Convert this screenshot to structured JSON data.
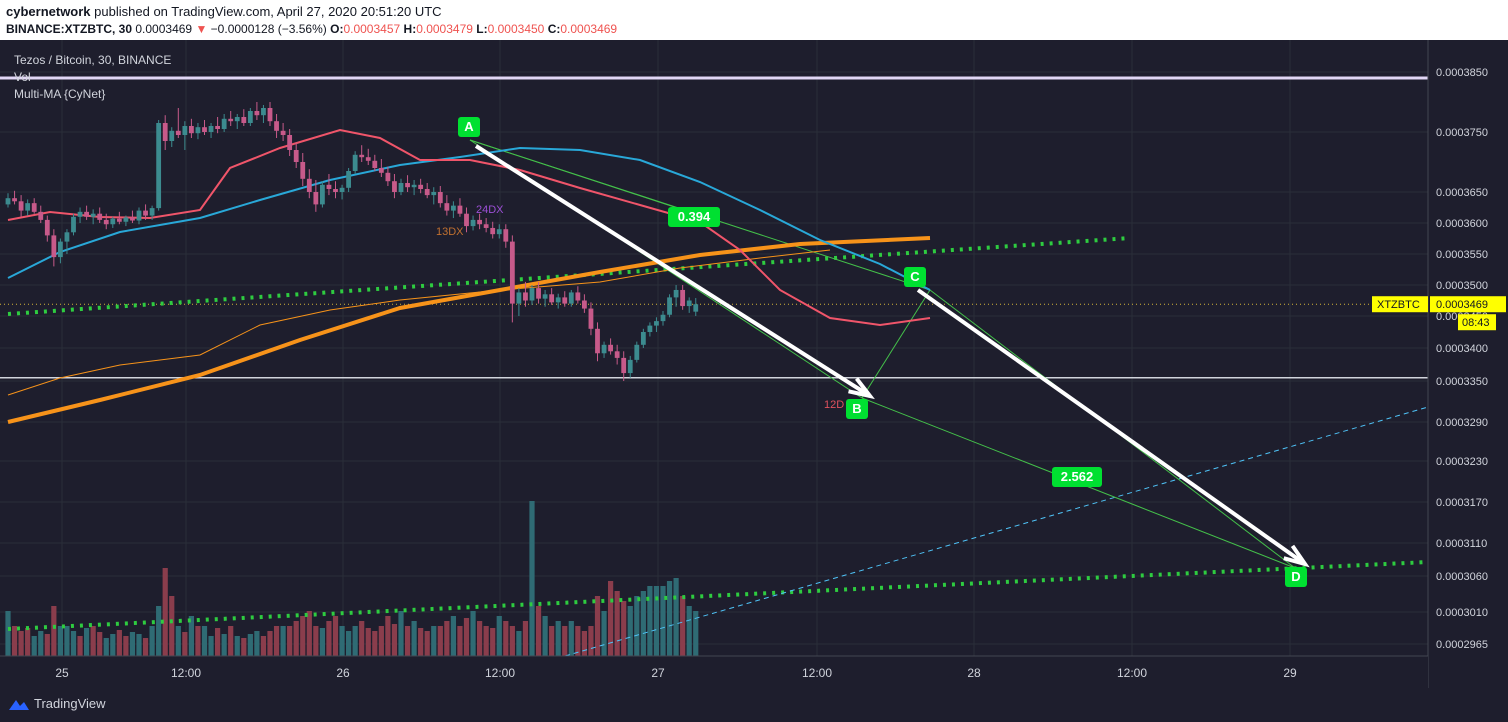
{
  "header": {
    "publisher": "cybernetwork",
    "published_text": "published on TradingView.com, April 27, 2020 20:51:20 UTC",
    "symbol": "BINANCE:XTZBTC, 30",
    "last": "0.0003469",
    "change_arrow": "▼",
    "change": "−0.0000128 (−3.56%)",
    "o_label": "O:",
    "o": "0.0003457",
    "h_label": "H:",
    "h": "0.0003479",
    "l_label": "L:",
    "l": "0.0003450",
    "c_label": "C:",
    "c": "0.0003469"
  },
  "legend": {
    "title": "Tezos / Bitcoin, 30, BINANCE",
    "vol": "Vol",
    "ma": "Multi-MA {CyNet}"
  },
  "footer": {
    "brand": "TradingView",
    "logo_icon": "tradingview-logo-icon"
  },
  "colors": {
    "background": "#1e1e2d",
    "up": "#26a69a",
    "down": "#ef5350",
    "ma_fast": "#f0556a",
    "ma_mid": "#29a8d8",
    "ma_slow": "#f7931a",
    "support": "#2ecc40",
    "annotation": "#00e031",
    "price_tag": "#ffff00"
  },
  "chart_data": {
    "type": "candlestick",
    "title": "Tezos / Bitcoin, 30, BINANCE",
    "y_ticks": [
      "0.0003850",
      "0.0003750",
      "0.0003650",
      "0.0003600",
      "0.0003550",
      "0.0003500",
      "0.0003450",
      "0.0003400",
      "0.0003350",
      "0.0003290",
      "0.0003230",
      "0.0003170",
      "0.0003110",
      "0.0003060",
      "0.0003010",
      "0.0002965"
    ],
    "x_ticks": [
      "25",
      "12:00",
      "26",
      "12:00",
      "27",
      "12:00",
      "28",
      "12:00",
      "29"
    ],
    "price_tag": {
      "symbol": "XTZBTC",
      "value": "0.0003469",
      "countdown": "08:43"
    },
    "annotations": [
      {
        "text": "A",
        "kind": "point"
      },
      {
        "text": "B",
        "kind": "point"
      },
      {
        "text": "C",
        "kind": "point"
      },
      {
        "text": "D",
        "kind": "point"
      },
      {
        "text": "0.394",
        "kind": "ratio"
      },
      {
        "text": "2.562",
        "kind": "ratio"
      },
      {
        "text": "24DX",
        "kind": "ma-label",
        "color": "#9c4fd6"
      },
      {
        "text": "13DX",
        "kind": "ma-label",
        "color": "#c07030"
      },
      {
        "text": "12D",
        "kind": "ma-label",
        "color": "#e0525e"
      }
    ],
    "resistance_level": 0.000384,
    "horizontal_level": 0.0003355,
    "current_price": 0.0003469,
    "candles": [
      [
        0.000363,
        0.0003648,
        0.0003625,
        0.000364
      ],
      [
        0.000364,
        0.0003652,
        0.000363,
        0.0003635
      ],
      [
        0.0003635,
        0.0003645,
        0.000361,
        0.000362
      ],
      [
        0.000362,
        0.0003638,
        0.0003612,
        0.0003632
      ],
      [
        0.0003632,
        0.000364,
        0.0003615,
        0.0003618
      ],
      [
        0.0003618,
        0.0003628,
        0.00036,
        0.0003605
      ],
      [
        0.0003605,
        0.0003612,
        0.000357,
        0.000358
      ],
      [
        0.000358,
        0.000359,
        0.000353,
        0.0003545
      ],
      [
        0.0003545,
        0.0003575,
        0.0003535,
        0.000357
      ],
      [
        0.000357,
        0.000359,
        0.000355,
        0.0003585
      ],
      [
        0.0003585,
        0.0003615,
        0.000358,
        0.000361
      ],
      [
        0.000361,
        0.0003625,
        0.00036,
        0.0003618
      ],
      [
        0.0003618,
        0.0003628,
        0.0003605,
        0.000361
      ],
      [
        0.000361,
        0.0003622,
        0.0003598,
        0.0003615
      ],
      [
        0.0003615,
        0.0003625,
        0.00036,
        0.0003605
      ],
      [
        0.0003605,
        0.0003615,
        0.000359,
        0.0003598
      ],
      [
        0.0003598,
        0.000361,
        0.0003592,
        0.0003607
      ],
      [
        0.0003607,
        0.0003618,
        0.0003598,
        0.0003602
      ],
      [
        0.0003602,
        0.0003612,
        0.0003595,
        0.0003609
      ],
      [
        0.0003609,
        0.000362,
        0.00036,
        0.0003604
      ],
      [
        0.0003604,
        0.0003625,
        0.0003598,
        0.000362
      ],
      [
        0.000362,
        0.000363,
        0.0003605,
        0.0003612
      ],
      [
        0.0003612,
        0.0003628,
        0.0003605,
        0.0003624
      ],
      [
        0.0003624,
        0.000377,
        0.000362,
        0.0003765
      ],
      [
        0.0003765,
        0.0003778,
        0.000372,
        0.0003735
      ],
      [
        0.0003735,
        0.0003758,
        0.0003725,
        0.0003752
      ],
      [
        0.0003752,
        0.000379,
        0.000374,
        0.0003745
      ],
      [
        0.0003745,
        0.0003768,
        0.000372,
        0.000376
      ],
      [
        0.000376,
        0.0003772,
        0.000374,
        0.0003748
      ],
      [
        0.0003748,
        0.0003765,
        0.0003738,
        0.0003758
      ],
      [
        0.0003758,
        0.000377,
        0.0003745,
        0.000375
      ],
      [
        0.000375,
        0.0003765,
        0.000374,
        0.000376
      ],
      [
        0.000376,
        0.0003775,
        0.0003748,
        0.0003755
      ],
      [
        0.0003755,
        0.000378,
        0.000375,
        0.0003772
      ],
      [
        0.0003772,
        0.0003785,
        0.000376,
        0.0003768
      ],
      [
        0.0003768,
        0.000378,
        0.0003755,
        0.0003775
      ],
      [
        0.0003775,
        0.0003788,
        0.000376,
        0.0003765
      ],
      [
        0.0003765,
        0.000379,
        0.000376,
        0.0003785
      ],
      [
        0.0003785,
        0.00038,
        0.000377,
        0.0003778
      ],
      [
        0.0003778,
        0.0003795,
        0.0003765,
        0.000379
      ],
      [
        0.000379,
        0.00038,
        0.000376,
        0.0003768
      ],
      [
        0.0003768,
        0.000378,
        0.000374,
        0.0003752
      ],
      [
        0.0003752,
        0.0003765,
        0.0003735,
        0.0003745
      ],
      [
        0.0003745,
        0.0003755,
        0.000371,
        0.000372
      ],
      [
        0.000372,
        0.0003732,
        0.000369,
        0.00037
      ],
      [
        0.00037,
        0.0003715,
        0.000366,
        0.0003672
      ],
      [
        0.0003672,
        0.0003688,
        0.000364,
        0.000365
      ],
      [
        0.000365,
        0.000367,
        0.0003618,
        0.000363
      ],
      [
        0.000363,
        0.0003668,
        0.0003625,
        0.0003662
      ],
      [
        0.0003662,
        0.000368,
        0.0003645,
        0.0003655
      ],
      [
        0.0003655,
        0.0003668,
        0.000364,
        0.000365
      ],
      [
        0.000365,
        0.0003662,
        0.0003638,
        0.0003657
      ],
      [
        0.0003657,
        0.000369,
        0.000365,
        0.0003685
      ],
      [
        0.0003685,
        0.0003718,
        0.000368,
        0.0003712
      ],
      [
        0.0003712,
        0.0003728,
        0.00037,
        0.0003708
      ],
      [
        0.0003708,
        0.0003722,
        0.0003695,
        0.0003702
      ],
      [
        0.0003702,
        0.0003712,
        0.0003685,
        0.000369
      ],
      [
        0.000369,
        0.0003705,
        0.0003675,
        0.0003682
      ],
      [
        0.0003682,
        0.0003692,
        0.000366,
        0.0003668
      ],
      [
        0.0003668,
        0.000368,
        0.000364,
        0.000365
      ],
      [
        0.000365,
        0.0003672,
        0.0003645,
        0.0003665
      ],
      [
        0.0003665,
        0.0003678,
        0.000365,
        0.0003658
      ],
      [
        0.0003658,
        0.000367,
        0.0003645,
        0.0003662
      ],
      [
        0.0003662,
        0.0003672,
        0.0003648,
        0.0003655
      ],
      [
        0.0003655,
        0.0003665,
        0.000364,
        0.0003645
      ],
      [
        0.0003645,
        0.0003658,
        0.000363,
        0.000365
      ],
      [
        0.000365,
        0.000366,
        0.0003625,
        0.0003632
      ],
      [
        0.0003632,
        0.0003645,
        0.0003612,
        0.000362
      ],
      [
        0.000362,
        0.0003635,
        0.0003608,
        0.0003628
      ],
      [
        0.0003628,
        0.000364,
        0.000361,
        0.0003615
      ],
      [
        0.0003615,
        0.0003625,
        0.0003585,
        0.0003595
      ],
      [
        0.0003595,
        0.0003612,
        0.0003588,
        0.0003605
      ],
      [
        0.0003605,
        0.0003615,
        0.000359,
        0.0003598
      ],
      [
        0.0003598,
        0.0003608,
        0.0003585,
        0.0003592
      ],
      [
        0.0003592,
        0.0003602,
        0.0003575,
        0.0003582
      ],
      [
        0.0003582,
        0.0003598,
        0.0003575,
        0.000359
      ],
      [
        0.000359,
        0.0003598,
        0.000356,
        0.000357
      ],
      [
        0.000357,
        0.000358,
        0.000344,
        0.000347
      ],
      [
        0.000347,
        0.0003495,
        0.000345,
        0.0003488
      ],
      [
        0.0003488,
        0.0003505,
        0.0003465,
        0.0003475
      ],
      [
        0.0003475,
        0.00035,
        0.0003468,
        0.0003495
      ],
      [
        0.0003495,
        0.0003505,
        0.000347,
        0.0003478
      ],
      [
        0.0003478,
        0.0003492,
        0.0003465,
        0.0003485
      ],
      [
        0.0003485,
        0.0003495,
        0.0003468,
        0.0003472
      ],
      [
        0.0003472,
        0.0003486,
        0.0003462,
        0.000348
      ],
      [
        0.000348,
        0.000349,
        0.0003465,
        0.000347
      ],
      [
        0.000347,
        0.0003492,
        0.0003465,
        0.0003488
      ],
      [
        0.0003488,
        0.0003498,
        0.000347,
        0.0003475
      ],
      [
        0.0003475,
        0.0003485,
        0.0003455,
        0.0003462
      ],
      [
        0.0003462,
        0.0003472,
        0.000342,
        0.000343
      ],
      [
        0.000343,
        0.000344,
        0.000338,
        0.0003392
      ],
      [
        0.0003392,
        0.000341,
        0.0003385,
        0.0003405
      ],
      [
        0.0003405,
        0.0003415,
        0.000339,
        0.0003395
      ],
      [
        0.0003395,
        0.0003405,
        0.0003375,
        0.0003385
      ],
      [
        0.0003385,
        0.0003395,
        0.000335,
        0.0003362
      ],
      [
        0.0003362,
        0.0003388,
        0.0003355,
        0.0003382
      ],
      [
        0.0003382,
        0.000341,
        0.0003378,
        0.0003405
      ],
      [
        0.0003405,
        0.000343,
        0.00034,
        0.0003425
      ],
      [
        0.0003425,
        0.000344,
        0.0003418,
        0.0003435
      ],
      [
        0.0003435,
        0.0003448,
        0.0003425,
        0.0003442
      ],
      [
        0.0003442,
        0.0003458,
        0.0003435,
        0.0003452
      ],
      [
        0.0003452,
        0.0003485,
        0.0003448,
        0.000348
      ],
      [
        0.000348,
        0.00035,
        0.0003465,
        0.0003492
      ],
      [
        0.0003492,
        0.00035,
        0.000346,
        0.0003466
      ],
      [
        0.0003466,
        0.000348,
        0.0003455,
        0.0003475
      ],
      [
        0.0003457,
        0.0003479,
        0.000345,
        0.0003469
      ]
    ],
    "volumes": [
      [
        0.0299,
        "up"
      ],
      [
        0.0299,
        "down"
      ],
      [
        0.0299,
        "down"
      ],
      [
        0.0299,
        "down"
      ],
      [
        0.0299,
        "up"
      ],
      [
        0.0299,
        "up"
      ],
      [
        0.0299,
        "down"
      ],
      [
        0.0299,
        "down"
      ],
      [
        0.0299,
        "up"
      ],
      [
        0.0299,
        "up"
      ],
      [
        0.0299,
        "up"
      ],
      [
        0.0299,
        "down"
      ],
      [
        0.0299,
        "up"
      ],
      [
        0.0299,
        "down"
      ],
      [
        0.0299,
        "down"
      ],
      [
        0.0299,
        "up"
      ],
      [
        0.0299,
        "up"
      ],
      [
        0.0299,
        "down"
      ],
      [
        0.0299,
        "down"
      ],
      [
        0.0299,
        "up"
      ],
      [
        0.0299,
        "up"
      ],
      [
        0.0299,
        "down"
      ],
      [
        0.0299,
        "up"
      ],
      [
        0.0299,
        "up"
      ],
      [
        0.0299,
        "down"
      ],
      [
        0.0299,
        "down"
      ],
      [
        0.0299,
        "up"
      ],
      [
        0.0299,
        "down"
      ],
      [
        0.0299,
        "up"
      ],
      [
        0.0299,
        "down"
      ],
      [
        0.0299,
        "up"
      ],
      [
        0.0299,
        "up"
      ],
      [
        0.0299,
        "down"
      ],
      [
        0.0299,
        "up"
      ],
      [
        0.0299,
        "down"
      ],
      [
        0.0299,
        "up"
      ],
      [
        0.0299,
        "down"
      ],
      [
        0.0299,
        "up"
      ],
      [
        0.0299,
        "up"
      ],
      [
        0.0299,
        "down"
      ],
      [
        0.0299,
        "down"
      ],
      [
        0.0299,
        "down"
      ],
      [
        0.0299,
        "up"
      ],
      [
        0.0299,
        "down"
      ],
      [
        0.0299,
        "down"
      ],
      [
        0.0299,
        "down"
      ],
      [
        0.0299,
        "down"
      ],
      [
        0.0299,
        "down"
      ],
      [
        0.0299,
        "up"
      ],
      [
        0.0299,
        "down"
      ],
      [
        0.0299,
        "down"
      ],
      [
        0.0299,
        "up"
      ],
      [
        0.0299,
        "up"
      ],
      [
        0.0299,
        "up"
      ],
      [
        0.0299,
        "down"
      ],
      [
        0.0299,
        "down"
      ],
      [
        0.0299,
        "down"
      ],
      [
        0.0299,
        "down"
      ],
      [
        0.0299,
        "down"
      ],
      [
        0.0299,
        "down"
      ],
      [
        0.0299,
        "up"
      ],
      [
        0.0299,
        "down"
      ],
      [
        0.0299,
        "up"
      ],
      [
        0.0299,
        "down"
      ],
      [
        0.0299,
        "down"
      ],
      [
        0.0299,
        "up"
      ],
      [
        0.0299,
        "down"
      ],
      [
        0.0299,
        "down"
      ],
      [
        0.0299,
        "up"
      ],
      [
        0.0299,
        "down"
      ],
      [
        0.0299,
        "down"
      ],
      [
        0.0299,
        "up"
      ],
      [
        0.0299,
        "down"
      ],
      [
        0.0299,
        "down"
      ],
      [
        0.0299,
        "down"
      ],
      [
        0.0299,
        "up"
      ],
      [
        0.0299,
        "down"
      ],
      [
        0.0299,
        "down"
      ],
      [
        0.0299,
        "up"
      ],
      [
        0.0299,
        "down"
      ],
      [
        0.0299,
        "up"
      ],
      [
        0.0299,
        "down"
      ],
      [
        0.0299,
        "up"
      ],
      [
        0.0299,
        "down"
      ],
      [
        0.0299,
        "up"
      ],
      [
        0.0299,
        "down"
      ],
      [
        0.0299,
        "up"
      ],
      [
        0.0299,
        "down"
      ],
      [
        0.0299,
        "down"
      ],
      [
        0.0299,
        "down"
      ],
      [
        0.0299,
        "down"
      ],
      [
        0.0299,
        "up"
      ],
      [
        0.0299,
        "down"
      ],
      [
        0.0299,
        "down"
      ],
      [
        0.0299,
        "down"
      ],
      [
        0.0299,
        "up"
      ],
      [
        0.0299,
        "up"
      ],
      [
        0.0299,
        "up"
      ],
      [
        0.0299,
        "up"
      ],
      [
        0.0299,
        "up"
      ],
      [
        0.0299,
        "up"
      ],
      [
        0.0299,
        "up"
      ],
      [
        0.0299,
        "up"
      ],
      [
        0.0299,
        "down"
      ],
      [
        0.0299,
        "up"
      ],
      [
        0.0299,
        "up"
      ]
    ]
  }
}
